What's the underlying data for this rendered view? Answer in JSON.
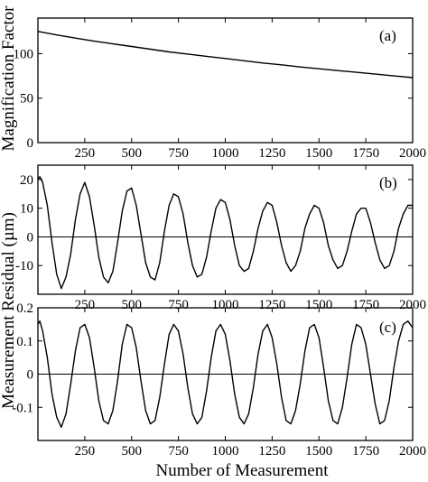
{
  "figure": {
    "xlabel": "Number of Measurement",
    "ylabel_top": "Magnification Factor",
    "ylabel_bottom": "Measurement Residual (µm)"
  },
  "chart_data": [
    {
      "type": "line",
      "panel": "(a)",
      "ylabel": "Magnification Factor",
      "xlabel": "",
      "xlim": [
        0,
        2000
      ],
      "ylim": [
        0,
        140
      ],
      "xticks": [
        250,
        500,
        750,
        1000,
        1250,
        1500,
        1750,
        2000
      ],
      "yticks": [
        0,
        50,
        100
      ],
      "zero_line": false,
      "series": [
        {
          "x": [
            0,
            100,
            200,
            300,
            400,
            500,
            600,
            700,
            800,
            900,
            1000,
            1100,
            1200,
            1300,
            1400,
            1500,
            1600,
            1700,
            1800,
            1900,
            2000
          ],
          "y": [
            125,
            121,
            117.5,
            114,
            111,
            108,
            105,
            102,
            99.5,
            97,
            94.5,
            92,
            89.5,
            87.5,
            85,
            83,
            81,
            79,
            77,
            75,
            73
          ]
        }
      ]
    },
    {
      "type": "line",
      "panel": "(b)",
      "ylabel": "Measurement Residual (µm)",
      "xlabel": "",
      "xlim": [
        0,
        2000
      ],
      "ylim": [
        -20,
        25
      ],
      "xticks": [
        250,
        500,
        750,
        1000,
        1250,
        1500,
        1750,
        2000
      ],
      "yticks": [
        -10,
        0,
        10,
        20
      ],
      "zero_line": true,
      "series": [
        {
          "x": [
            0,
            10,
            25,
            50,
            75,
            100,
            125,
            150,
            175,
            200,
            225,
            250,
            275,
            300,
            325,
            350,
            375,
            400,
            425,
            450,
            475,
            500,
            525,
            550,
            575,
            600,
            625,
            650,
            675,
            700,
            725,
            750,
            775,
            800,
            825,
            850,
            875,
            900,
            925,
            950,
            975,
            1000,
            1025,
            1050,
            1075,
            1100,
            1125,
            1150,
            1175,
            1200,
            1225,
            1250,
            1275,
            1300,
            1325,
            1350,
            1375,
            1400,
            1425,
            1450,
            1475,
            1500,
            1525,
            1550,
            1575,
            1600,
            1625,
            1650,
            1675,
            1700,
            1725,
            1750,
            1775,
            1800,
            1825,
            1850,
            1875,
            1900,
            1925,
            1950,
            1975,
            2000
          ],
          "y": [
            20,
            21,
            19,
            11,
            -2,
            -13,
            -18,
            -14,
            -6,
            6,
            15,
            19,
            14,
            4,
            -7,
            -14,
            -16,
            -12,
            -2,
            9,
            16,
            17,
            11,
            1,
            -9,
            -14,
            -15,
            -9,
            2,
            11,
            15,
            14,
            8,
            -2,
            -10,
            -14,
            -13,
            -7,
            2,
            10,
            13,
            12,
            6,
            -3,
            -10,
            -12,
            -11,
            -5,
            3,
            9,
            12,
            11,
            5,
            -3,
            -9,
            -12,
            -10,
            -5,
            3,
            8,
            11,
            10,
            5,
            -3,
            -8,
            -11,
            -10,
            -5,
            2,
            8,
            10,
            10,
            5,
            -2,
            -8,
            -11,
            -10,
            -5,
            3,
            8,
            11,
            11
          ]
        }
      ]
    },
    {
      "type": "line",
      "panel": "(c)",
      "ylabel": "Measurement Residual (µm)",
      "xlabel": "Number of Measurement",
      "xlim": [
        0,
        2000
      ],
      "ylim": [
        -0.2,
        0.2
      ],
      "xticks": [
        250,
        500,
        750,
        1000,
        1250,
        1500,
        1750,
        2000
      ],
      "yticks": [
        -0.1,
        0,
        0.1,
        0.2
      ],
      "ytick_labels": [
        "-0.1",
        "0",
        "0.1",
        "0.2"
      ],
      "zero_line": true,
      "series": [
        {
          "x": [
            0,
            10,
            25,
            50,
            75,
            100,
            125,
            150,
            175,
            200,
            225,
            250,
            275,
            300,
            325,
            350,
            375,
            400,
            425,
            450,
            475,
            500,
            525,
            550,
            575,
            600,
            625,
            650,
            675,
            700,
            725,
            750,
            775,
            800,
            825,
            850,
            875,
            900,
            925,
            950,
            975,
            1000,
            1025,
            1050,
            1075,
            1100,
            1125,
            1150,
            1175,
            1200,
            1225,
            1250,
            1275,
            1300,
            1325,
            1350,
            1375,
            1400,
            1425,
            1450,
            1475,
            1500,
            1525,
            1550,
            1575,
            1600,
            1625,
            1650,
            1675,
            1700,
            1725,
            1750,
            1775,
            1800,
            1825,
            1850,
            1875,
            1900,
            1925,
            1950,
            1975,
            2000
          ],
          "y": [
            0.15,
            0.16,
            0.13,
            0.05,
            -0.06,
            -0.13,
            -0.16,
            -0.12,
            -0.03,
            0.07,
            0.14,
            0.15,
            0.11,
            0.02,
            -0.08,
            -0.14,
            -0.15,
            -0.11,
            -0.02,
            0.09,
            0.15,
            0.14,
            0.08,
            -0.02,
            -0.11,
            -0.15,
            -0.14,
            -0.07,
            0.03,
            0.12,
            0.15,
            0.13,
            0.06,
            -0.04,
            -0.12,
            -0.15,
            -0.13,
            -0.05,
            0.05,
            0.13,
            0.15,
            0.12,
            0.04,
            -0.06,
            -0.13,
            -0.15,
            -0.12,
            -0.04,
            0.06,
            0.13,
            0.15,
            0.11,
            0.03,
            -0.07,
            -0.14,
            -0.15,
            -0.11,
            -0.03,
            0.07,
            0.14,
            0.15,
            0.11,
            0.02,
            -0.08,
            -0.14,
            -0.15,
            -0.1,
            -0.01,
            0.09,
            0.15,
            0.14,
            0.09,
            0.0,
            -0.09,
            -0.15,
            -0.14,
            -0.08,
            0.02,
            0.1,
            0.15,
            0.16,
            0.14
          ]
        }
      ]
    }
  ]
}
